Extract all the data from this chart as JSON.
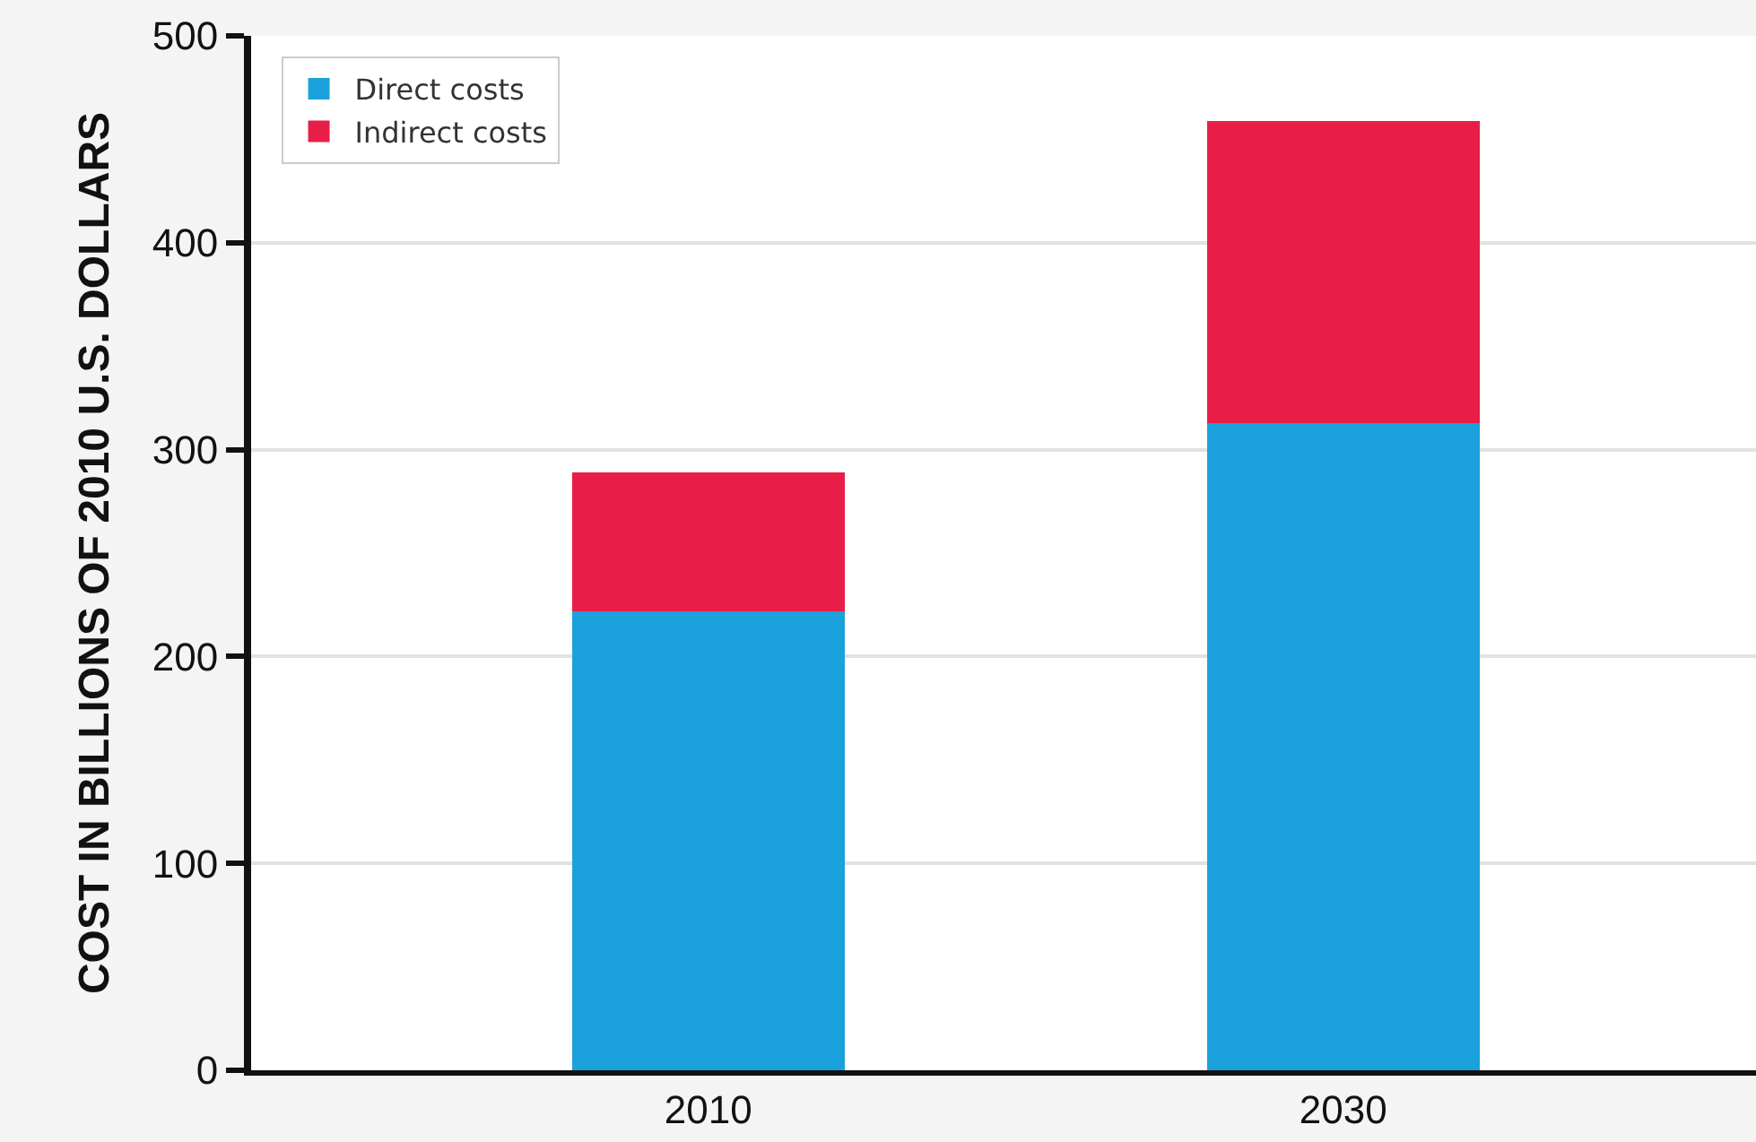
{
  "chart_data": {
    "type": "bar",
    "stacked": true,
    "ylabel": "COST IN BILLIONS OF 2010 U.S. DOLLARS",
    "categories": [
      "2010",
      "2030"
    ],
    "series": [
      {
        "name": "Direct costs",
        "color": "#1ba1db",
        "values": [
          222,
          313
        ]
      },
      {
        "name": "Indirect costs",
        "color": "#e91e47",
        "values": [
          67,
          146
        ]
      }
    ],
    "ylim": [
      0,
      500
    ],
    "yticks": [
      0,
      100,
      200,
      300,
      400,
      500
    ],
    "grid": "y",
    "legend": "top left"
  }
}
